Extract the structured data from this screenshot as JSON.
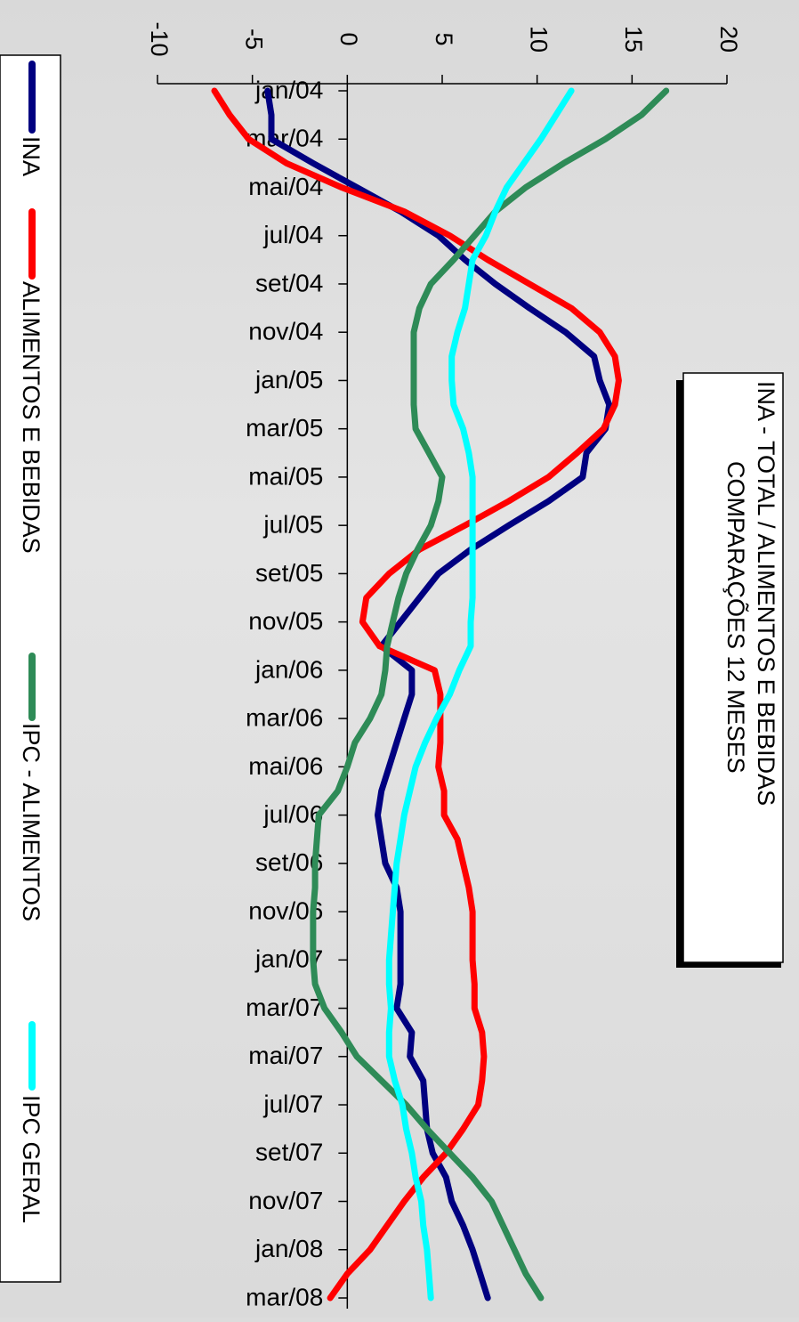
{
  "chart_data": {
    "type": "line",
    "title": "INA - TOTAL / ALIMENTOS E BEBIDAS",
    "subtitle": "COMPARAÇÕES 12 MESES",
    "x": [
      "jan/04",
      "fev/04",
      "mar/04",
      "abr/04",
      "mai/04",
      "jun/04",
      "jul/04",
      "ago/04",
      "set/04",
      "out/04",
      "nov/04",
      "dez/04",
      "jan/05",
      "fev/05",
      "mar/05",
      "abr/05",
      "mai/05",
      "jun/05",
      "jul/05",
      "ago/05",
      "set/05",
      "out/05",
      "nov/05",
      "dez/05",
      "jan/06",
      "fev/06",
      "mar/06",
      "abr/06",
      "mai/06",
      "jun/06",
      "jul/06",
      "ago/06",
      "set/06",
      "out/06",
      "nov/06",
      "dez/06",
      "jan/07",
      "fev/07",
      "mar/07",
      "abr/07",
      "mai/07",
      "jun/07",
      "jul/07",
      "ago/07",
      "set/07",
      "out/07",
      "nov/07",
      "dez/07",
      "jan/08",
      "fev/08",
      "mar/08"
    ],
    "tick_labels": [
      "jan/04",
      "mar/04",
      "mai/04",
      "jul/04",
      "set/04",
      "nov/04",
      "jan/05",
      "mar/05",
      "mai/05",
      "jul/05",
      "set/05",
      "nov/05",
      "jan/06",
      "mar/06",
      "mai/06",
      "jul/06",
      "set/06",
      "nov/06",
      "jan/07",
      "mar/07",
      "mai/07",
      "jul/07",
      "set/07",
      "nov/07",
      "jan/08",
      "mar/08"
    ],
    "ylim": [
      -10,
      20
    ],
    "yticks": [
      -10,
      -5,
      0,
      5,
      10,
      15,
      20
    ],
    "orientation": "rotated 90° clockwise",
    "legend_position": "left",
    "series": [
      {
        "name": "INA",
        "color": "#000080",
        "values": [
          -4.2,
          -4.0,
          -4.0,
          -1.8,
          0.5,
          2.8,
          4.8,
          6.2,
          7.8,
          9.6,
          11.5,
          13.0,
          13.3,
          13.8,
          13.6,
          12.6,
          12.4,
          10.6,
          8.5,
          6.5,
          4.8,
          3.8,
          2.8,
          1.8,
          3.4,
          3.4,
          3.0,
          2.6,
          2.2,
          1.8,
          1.6,
          1.8,
          2.0,
          2.6,
          2.8,
          2.8,
          2.8,
          2.8,
          2.6,
          3.4,
          3.3,
          4.0,
          4.1,
          4.2,
          4.5,
          5.2,
          5.5,
          6.1,
          6.6,
          7.0,
          7.4
        ]
      },
      {
        "name": "ALIMENTOS E BEBIDAS",
        "color": "#ff0000",
        "values": [
          -7.0,
          -6.2,
          -5.2,
          -3.2,
          -0.3,
          3.0,
          5.4,
          7.4,
          9.6,
          11.8,
          13.3,
          14.1,
          14.3,
          14.1,
          13.5,
          12.1,
          10.6,
          8.5,
          6.2,
          3.8,
          2.2,
          1.0,
          0.8,
          1.7,
          4.6,
          4.9,
          4.9,
          4.9,
          4.8,
          5.1,
          5.1,
          5.8,
          6.1,
          6.4,
          6.6,
          6.6,
          6.6,
          6.7,
          6.7,
          7.1,
          7.2,
          7.1,
          6.9,
          6.1,
          5.2,
          4.0,
          3.0,
          2.1,
          1.2,
          0.0,
          -0.9
        ]
      },
      {
        "name": "IPC - ALIMENTOS",
        "color": "#2e8b57",
        "values": [
          16.8,
          15.5,
          13.6,
          11.4,
          9.4,
          7.8,
          6.7,
          5.6,
          4.4,
          3.8,
          3.5,
          3.5,
          3.5,
          3.5,
          3.6,
          4.3,
          5.0,
          4.8,
          4.4,
          3.7,
          3.1,
          2.7,
          2.4,
          2.1,
          2.0,
          1.8,
          1.2,
          0.4,
          0.0,
          -0.5,
          -1.5,
          -1.6,
          -1.7,
          -1.7,
          -1.8,
          -1.8,
          -1.8,
          -1.7,
          -1.2,
          -0.3,
          0.5,
          1.8,
          3.1,
          4.2,
          5.4,
          6.6,
          7.6,
          8.2,
          8.8,
          9.4,
          10.2
        ]
      },
      {
        "name": "IPC GERAL",
        "color": "#00ffff",
        "values": [
          11.8,
          11.0,
          10.2,
          9.3,
          8.4,
          7.8,
          7.3,
          6.6,
          6.4,
          6.2,
          5.8,
          5.5,
          5.5,
          5.6,
          6.1,
          6.4,
          6.6,
          6.6,
          6.6,
          6.6,
          6.6,
          6.6,
          6.5,
          6.5,
          5.9,
          5.4,
          4.7,
          4.1,
          3.6,
          3.3,
          3.0,
          2.8,
          2.6,
          2.5,
          2.4,
          2.3,
          2.2,
          2.2,
          2.3,
          2.2,
          2.2,
          2.5,
          2.9,
          3.1,
          3.4,
          3.6,
          3.9,
          4.0,
          4.2,
          4.3,
          4.4
        ]
      }
    ]
  }
}
